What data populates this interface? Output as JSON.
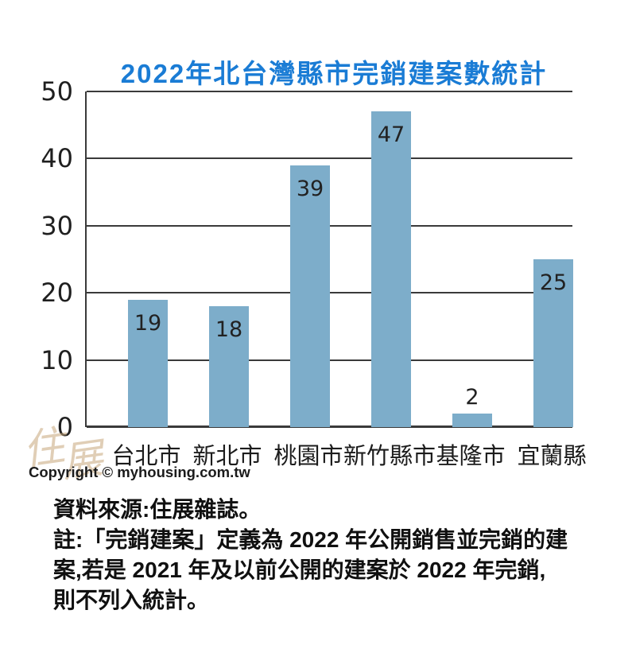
{
  "page": {
    "title": "2022年北台灣縣市完銷建案數統計",
    "watermark_chars": [
      "住",
      "展"
    ],
    "copyright": "Copyright © myhousing.com.tw",
    "notes": [
      "資料來源:住展雜誌。",
      "註:「完銷建案」定義為 2022 年公開銷售並完銷的建",
      "案,若是 2021 年及以前公開的建案於 2022 年完銷,",
      "則不列入統計。"
    ]
  },
  "colors": {
    "title_blue": "#1a7cd5",
    "bar_fill": "#7dadca",
    "axis_line": "#3a3a3a",
    "label_text": "#1f1f1f",
    "watermark_tan": "rgba(198,166,122,0.55)"
  },
  "chart_data": {
    "type": "bar",
    "title": "2022年北台灣縣市完銷建案數統計",
    "categories": [
      "台北市",
      "新北市",
      "桃園市",
      "新竹縣市",
      "基隆市",
      "宜蘭縣"
    ],
    "values": [
      19,
      18,
      39,
      47,
      2,
      25
    ],
    "xlabel": "",
    "ylabel": "",
    "ylim": [
      0,
      50
    ],
    "yticks": [
      0,
      10,
      20,
      30,
      40,
      50
    ],
    "grid": true,
    "legend": false,
    "value_labels": "inside top of bar; above bar when bar too short"
  }
}
